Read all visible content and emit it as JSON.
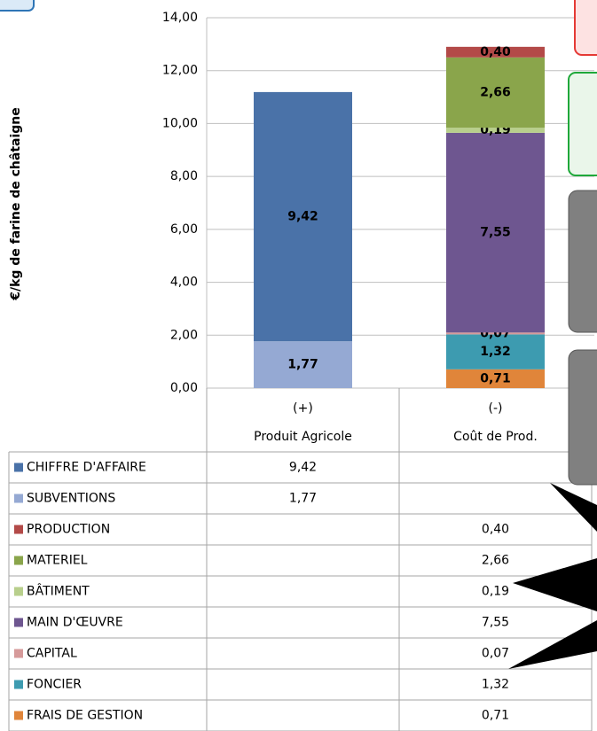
{
  "chart_data": {
    "type": "stacked-bar-table",
    "y_label": "€/kg de farine de châtaigne",
    "categories": [
      "Produit Agricole",
      "Coût de Prod."
    ],
    "category_signs": [
      "(+)",
      "(-)"
    ],
    "ylim": [
      0,
      14
    ],
    "yticks": [
      {
        "value": 0,
        "label": "0,00"
      },
      {
        "value": 2,
        "label": "2,00"
      },
      {
        "value": 4,
        "label": "4,00"
      },
      {
        "value": 6,
        "label": "6,00"
      },
      {
        "value": 8,
        "label": "8,00"
      },
      {
        "value": 10,
        "label": "10,00"
      },
      {
        "value": 12,
        "label": "12,00"
      },
      {
        "value": 14,
        "label": "14,00"
      }
    ],
    "grid": true,
    "series": [
      {
        "name": "CHIFFRE D'AFFAIRE",
        "color": "#4a72a8",
        "values": [
          9.42,
          null
        ],
        "value_labels": [
          "9,42",
          null
        ]
      },
      {
        "name": "SUBVENTIONS",
        "color": "#95a9d3",
        "values": [
          1.77,
          null
        ],
        "value_labels": [
          "1,77",
          null
        ]
      },
      {
        "name": "PRODUCTION",
        "color": "#b34a48",
        "values": [
          null,
          0.4
        ],
        "value_labels": [
          null,
          "0,40"
        ]
      },
      {
        "name": "MATERIEL",
        "color": "#8aa54b",
        "values": [
          null,
          2.66
        ],
        "value_labels": [
          null,
          "2,66"
        ]
      },
      {
        "name": "BÂTIMENT",
        "color": "#b8cf8c",
        "values": [
          null,
          0.19
        ],
        "value_labels": [
          null,
          "0,19"
        ]
      },
      {
        "name": "MAIN D'ŒUVRE",
        "color": "#6e5690",
        "values": [
          null,
          7.55
        ],
        "value_labels": [
          null,
          "7,55"
        ]
      },
      {
        "name": "CAPITAL",
        "color": "#d69a9a",
        "values": [
          null,
          0.07
        ],
        "value_labels": [
          null,
          "0,07"
        ]
      },
      {
        "name": "FONCIER",
        "color": "#3d9bb0",
        "values": [
          null,
          1.32
        ],
        "value_labels": [
          null,
          "1,32"
        ]
      },
      {
        "name": "FRAIS DE GESTION",
        "color": "#e0853a",
        "values": [
          null,
          0.71
        ],
        "value_labels": [
          null,
          "0,71"
        ]
      }
    ]
  }
}
